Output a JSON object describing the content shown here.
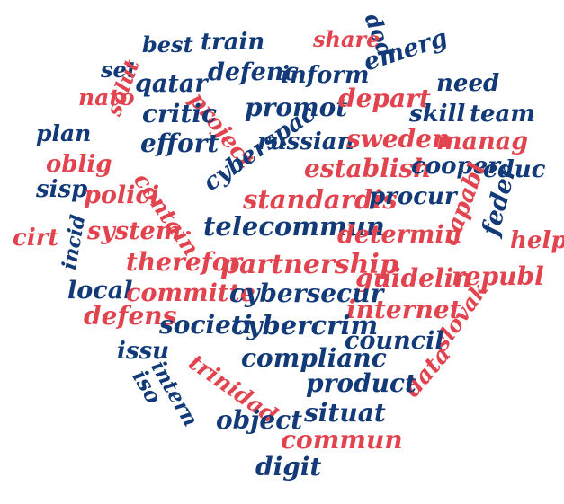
{
  "word_cloud": {
    "shape": "heart",
    "colors": {
      "blue": "#123a78",
      "red": "#e2444f"
    },
    "words": [
      {
        "text": "dod",
        "color": "blue"
      },
      {
        "text": "best",
        "color": "blue"
      },
      {
        "text": "train",
        "color": "blue"
      },
      {
        "text": "share",
        "color": "red"
      },
      {
        "text": "set",
        "color": "blue"
      },
      {
        "text": "qatar",
        "color": "blue"
      },
      {
        "text": "defenc",
        "color": "blue"
      },
      {
        "text": "inform",
        "color": "blue"
      },
      {
        "text": "emerg",
        "color": "blue"
      },
      {
        "text": "need",
        "color": "blue"
      },
      {
        "text": "nato",
        "color": "red"
      },
      {
        "text": "project",
        "color": "red"
      },
      {
        "text": "promot",
        "color": "blue"
      },
      {
        "text": "depart",
        "color": "red"
      },
      {
        "text": "critic",
        "color": "blue"
      },
      {
        "text": "skill",
        "color": "blue"
      },
      {
        "text": "team",
        "color": "blue"
      },
      {
        "text": "plan",
        "color": "blue"
      },
      {
        "text": "solut",
        "color": "red"
      },
      {
        "text": "effort",
        "color": "blue"
      },
      {
        "text": "russian",
        "color": "blue"
      },
      {
        "text": "sweden",
        "color": "red"
      },
      {
        "text": "manag",
        "color": "red"
      },
      {
        "text": "oblig",
        "color": "red"
      },
      {
        "text": "cyberspac",
        "color": "blue"
      },
      {
        "text": "establish",
        "color": "red"
      },
      {
        "text": "cooper",
        "color": "blue"
      },
      {
        "text": "educ",
        "color": "blue"
      },
      {
        "text": "sisp",
        "color": "blue"
      },
      {
        "text": "polici",
        "color": "red"
      },
      {
        "text": "contain",
        "color": "red"
      },
      {
        "text": "standardis",
        "color": "red"
      },
      {
        "text": "procur",
        "color": "blue"
      },
      {
        "text": "feder",
        "color": "blue"
      },
      {
        "text": "cirt",
        "color": "red"
      },
      {
        "text": "incid",
        "color": "blue"
      },
      {
        "text": "system",
        "color": "red"
      },
      {
        "text": "telecommun",
        "color": "blue"
      },
      {
        "text": "determin",
        "color": "red"
      },
      {
        "text": "capabl",
        "color": "red"
      },
      {
        "text": "help",
        "color": "red"
      },
      {
        "text": "therefor",
        "color": "red"
      },
      {
        "text": "partnership",
        "color": "red"
      },
      {
        "text": "guidelin",
        "color": "red"
      },
      {
        "text": "republ",
        "color": "red"
      },
      {
        "text": "local",
        "color": "blue"
      },
      {
        "text": "committe",
        "color": "red"
      },
      {
        "text": "cybersecur",
        "color": "blue"
      },
      {
        "text": "internet",
        "color": "red"
      },
      {
        "text": "defens",
        "color": "red"
      },
      {
        "text": "societi",
        "color": "blue"
      },
      {
        "text": "cybercrim",
        "color": "blue"
      },
      {
        "text": "slovak",
        "color": "red"
      },
      {
        "text": "issu",
        "color": "blue"
      },
      {
        "text": "council",
        "color": "blue"
      },
      {
        "text": "trinidad",
        "color": "red"
      },
      {
        "text": "complianc",
        "color": "blue"
      },
      {
        "text": "iso",
        "color": "blue"
      },
      {
        "text": "intern",
        "color": "blue"
      },
      {
        "text": "data",
        "color": "red"
      },
      {
        "text": "product",
        "color": "blue"
      },
      {
        "text": "object",
        "color": "blue"
      },
      {
        "text": "situat",
        "color": "blue"
      },
      {
        "text": "commun",
        "color": "red"
      },
      {
        "text": "digit",
        "color": "blue"
      }
    ]
  }
}
